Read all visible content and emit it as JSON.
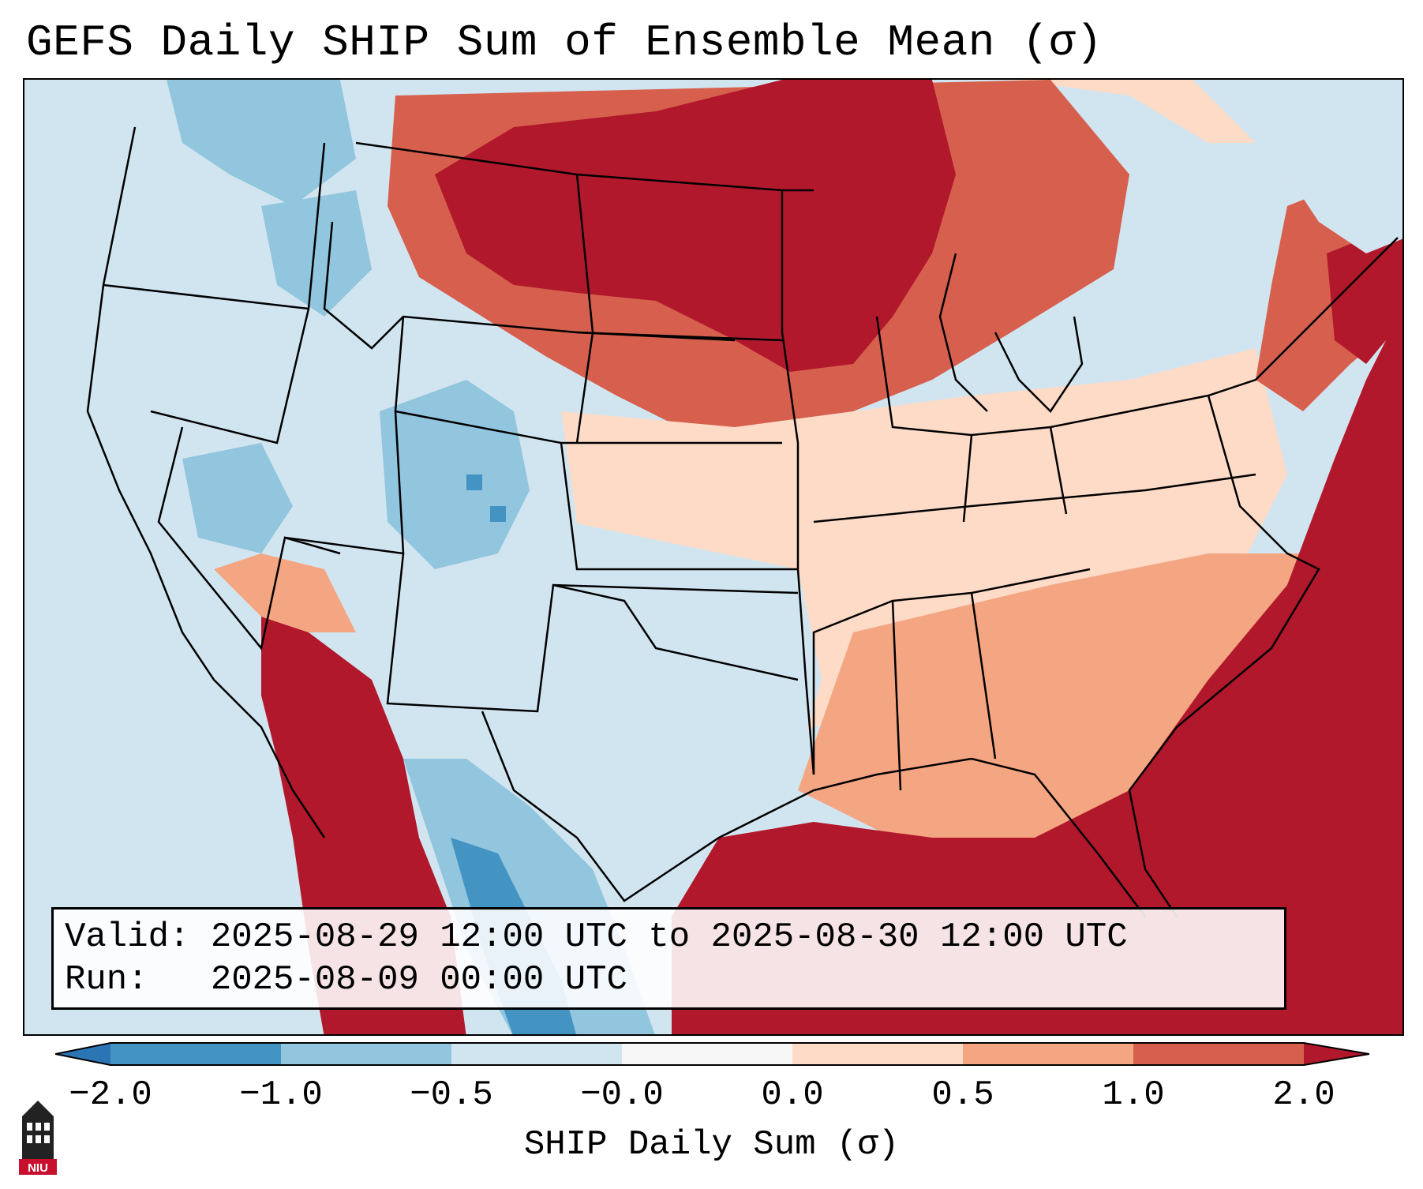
{
  "title": "GEFS Daily SHIP Sum of Ensemble Mean (σ)",
  "info": {
    "valid_line": "Valid: 2025-08-29 12:00 UTC to 2025-08-30 12:00 UTC",
    "run_line": "Run:   2025-08-09 00:00 UTC"
  },
  "colorbar": {
    "label": "SHIP Daily Sum (σ)",
    "ticks": [
      "−2.0",
      "−1.0",
      "−0.5",
      "−0.0",
      "0.0",
      "0.5",
      "1.0",
      "2.0"
    ],
    "bins": [
      {
        "range": "< -2.0",
        "color": "#2c75b5"
      },
      {
        "range": "-2.0 to -1.0",
        "color": "#4393c3"
      },
      {
        "range": "-1.0 to -0.5",
        "color": "#92c5de"
      },
      {
        "range": "-0.5 to -0.0",
        "color": "#d1e5f0"
      },
      {
        "range": "-0.0 to 0.0",
        "color": "#f7f7f7"
      },
      {
        "range": "0.0 to 0.5",
        "color": "#fddbc7"
      },
      {
        "range": "0.5 to 1.0",
        "color": "#f4a582"
      },
      {
        "range": "1.0 to 2.0",
        "color": "#d6604d"
      },
      {
        "range": "> 2.0",
        "color": "#b2182b"
      }
    ]
  },
  "logo": {
    "text": "NIU",
    "icon": "university-tower-icon",
    "color": "#c8102e"
  }
}
